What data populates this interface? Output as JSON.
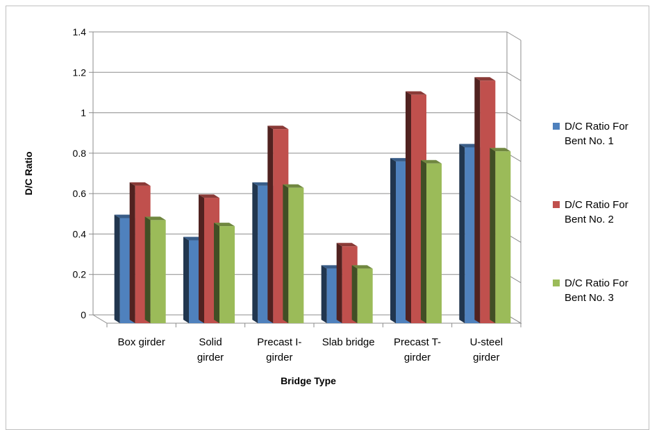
{
  "chart_data": {
    "type": "bar",
    "style": "3d-clustered-column",
    "categories": [
      [
        "Box girder"
      ],
      [
        "Solid",
        "girder"
      ],
      [
        "Precast I-",
        "girder"
      ],
      [
        "Slab bridge"
      ],
      [
        "Precast T-",
        "girder"
      ],
      [
        "U-steel",
        "girder"
      ]
    ],
    "series": [
      {
        "name": [
          "D/C Ratio For",
          "Bent No. 1"
        ],
        "color": "#4f81bd",
        "values": [
          0.52,
          0.41,
          0.68,
          0.27,
          0.8,
          0.87
        ]
      },
      {
        "name": [
          "D/C Ratio For",
          "Bent No. 2"
        ],
        "color": "#c0504d",
        "values": [
          0.68,
          0.62,
          0.96,
          0.38,
          1.13,
          1.2
        ]
      },
      {
        "name": [
          "D/C Ratio For",
          "Bent No. 3"
        ],
        "color": "#9bbb59",
        "values": [
          0.51,
          0.48,
          0.67,
          0.27,
          0.79,
          0.85
        ]
      }
    ],
    "xlabel": "Bridge Type",
    "ylabel": "D/C Ratio",
    "ylim": [
      0,
      1.4
    ],
    "yticks": [
      "0",
      "0.2",
      "0.4",
      "0.6",
      "0.8",
      "1",
      "1.2",
      "1.4"
    ],
    "grid": true,
    "legend": "right"
  }
}
